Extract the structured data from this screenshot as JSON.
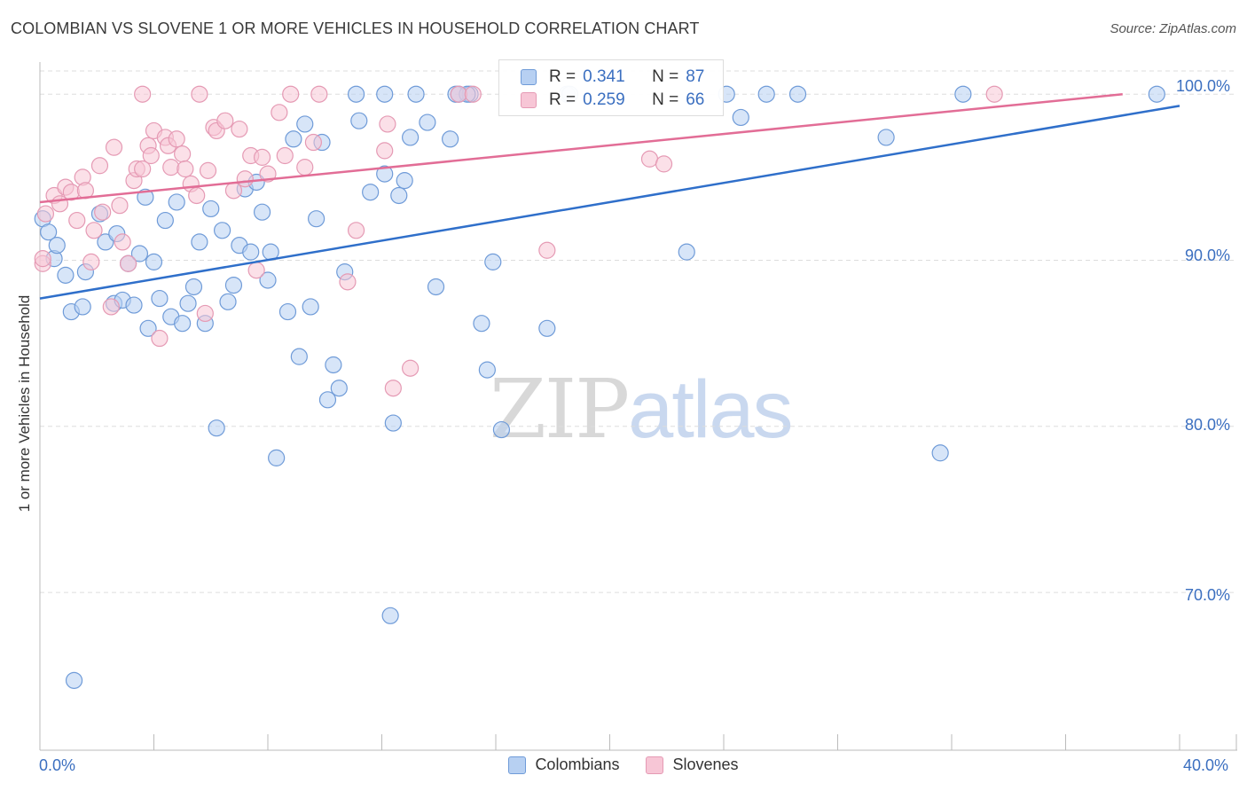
{
  "header": {
    "title": "COLOMBIAN VS SLOVENE 1 OR MORE VEHICLES IN HOUSEHOLD CORRELATION CHART",
    "source": "Source: ZipAtlas.com"
  },
  "watermark": {
    "zip": "ZIP",
    "atlas": "atlas"
  },
  "legend": {
    "r_label": "R =",
    "n_label": "N =",
    "colombians": {
      "r": "0.341",
      "n": "87",
      "name": "Colombians"
    },
    "slovenes": {
      "r": "0.259",
      "n": "66",
      "name": "Slovenes"
    }
  },
  "colors": {
    "colombians_fill": "#b7d0f2",
    "colombians_stroke": "#6f9bd8",
    "colombians_line": "#2f6fca",
    "slovenes_fill": "#f7c6d6",
    "slovenes_stroke": "#e59ab4",
    "slovenes_line": "#e26d96",
    "grid": "#dddddd",
    "axis_text": "#3b6fc0"
  },
  "chart_data": {
    "type": "scatter",
    "title": "COLOMBIAN VS SLOVENE 1 OR MORE VEHICLES IN HOUSEHOLD CORRELATION CHART",
    "xlabel": "",
    "ylabel": "1 or more Vehicles in Household",
    "xlim": [
      0,
      40
    ],
    "ylim": [
      60.5,
      101.4
    ],
    "x_tick_labels": [
      "0.0%",
      "40.0%"
    ],
    "y_ticks": [
      70,
      80,
      90,
      100
    ],
    "y_tick_labels": [
      "70.0%",
      "80.0%",
      "90.0%",
      "100.0%"
    ],
    "grid": true,
    "legend_position": "top-center",
    "series": [
      {
        "name": "Colombians",
        "r": 0.341,
        "n": 87,
        "trend": {
          "x": [
            0,
            40
          ],
          "y": [
            87.7,
            99.3
          ]
        },
        "points": [
          [
            0.1,
            92.5
          ],
          [
            0.3,
            91.7
          ],
          [
            0.5,
            90.1
          ],
          [
            0.6,
            90.9
          ],
          [
            0.9,
            89.1
          ],
          [
            1.1,
            86.9
          ],
          [
            1.2,
            64.7
          ],
          [
            1.5,
            87.2
          ],
          [
            1.6,
            89.3
          ],
          [
            2.1,
            92.8
          ],
          [
            2.3,
            91.1
          ],
          [
            2.7,
            91.6
          ],
          [
            2.6,
            87.4
          ],
          [
            2.9,
            87.6
          ],
          [
            3.1,
            89.8
          ],
          [
            3.3,
            87.3
          ],
          [
            3.5,
            90.4
          ],
          [
            3.7,
            93.8
          ],
          [
            3.8,
            85.9
          ],
          [
            4.0,
            89.9
          ],
          [
            4.2,
            87.7
          ],
          [
            4.4,
            92.4
          ],
          [
            4.6,
            86.6
          ],
          [
            4.8,
            93.5
          ],
          [
            5.0,
            86.2
          ],
          [
            5.2,
            87.4
          ],
          [
            5.4,
            88.4
          ],
          [
            5.6,
            91.1
          ],
          [
            5.8,
            86.2
          ],
          [
            6.0,
            93.1
          ],
          [
            6.2,
            79.9
          ],
          [
            6.4,
            91.8
          ],
          [
            6.6,
            87.5
          ],
          [
            6.8,
            88.5
          ],
          [
            7.0,
            90.9
          ],
          [
            7.2,
            94.3
          ],
          [
            7.4,
            90.5
          ],
          [
            7.6,
            94.7
          ],
          [
            7.8,
            92.9
          ],
          [
            8.0,
            88.8
          ],
          [
            8.1,
            90.5
          ],
          [
            8.3,
            78.1
          ],
          [
            8.7,
            86.9
          ],
          [
            8.9,
            97.3
          ],
          [
            9.1,
            84.2
          ],
          [
            9.3,
            98.2
          ],
          [
            9.5,
            87.2
          ],
          [
            9.7,
            92.5
          ],
          [
            9.9,
            97.1
          ],
          [
            10.1,
            81.6
          ],
          [
            10.3,
            83.7
          ],
          [
            10.5,
            82.3
          ],
          [
            10.7,
            89.3
          ],
          [
            11.1,
            100.0
          ],
          [
            11.2,
            98.4
          ],
          [
            11.6,
            94.1
          ],
          [
            12.1,
            95.2
          ],
          [
            12.3,
            68.6
          ],
          [
            12.4,
            80.2
          ],
          [
            12.6,
            93.9
          ],
          [
            12.8,
            94.8
          ],
          [
            13.0,
            97.4
          ],
          [
            13.2,
            100.0
          ],
          [
            13.6,
            98.3
          ],
          [
            13.9,
            88.4
          ],
          [
            14.4,
            97.3
          ],
          [
            14.6,
            100.0
          ],
          [
            15.1,
            100.0
          ],
          [
            15.5,
            86.2
          ],
          [
            15.7,
            83.4
          ],
          [
            15.9,
            89.9
          ],
          [
            16.2,
            79.8
          ],
          [
            17.8,
            85.9
          ],
          [
            18.5,
            100.0
          ],
          [
            18.6,
            100.0
          ],
          [
            22.7,
            90.5
          ],
          [
            24.1,
            100.0
          ],
          [
            24.6,
            98.6
          ],
          [
            25.5,
            100.0
          ],
          [
            26.6,
            100.0
          ],
          [
            29.7,
            97.4
          ],
          [
            31.6,
            78.4
          ],
          [
            32.4,
            100.0
          ],
          [
            39.2,
            100.0
          ],
          [
            12.1,
            100.0
          ],
          [
            15.0,
            100.0
          ],
          [
            14.7,
            100.0
          ]
        ]
      },
      {
        "name": "Slovenes",
        "r": 0.259,
        "n": 66,
        "trend": {
          "x": [
            0,
            38
          ],
          "y": [
            93.5,
            100.0
          ]
        },
        "points": [
          [
            0.1,
            89.8
          ],
          [
            0.2,
            92.8
          ],
          [
            0.5,
            93.9
          ],
          [
            0.7,
            93.4
          ],
          [
            0.9,
            94.4
          ],
          [
            1.1,
            94.1
          ],
          [
            1.3,
            92.4
          ],
          [
            1.5,
            95.0
          ],
          [
            1.6,
            94.2
          ],
          [
            1.8,
            89.9
          ],
          [
            1.9,
            91.8
          ],
          [
            2.1,
            95.7
          ],
          [
            2.2,
            92.9
          ],
          [
            2.5,
            87.2
          ],
          [
            2.6,
            96.8
          ],
          [
            2.8,
            93.3
          ],
          [
            2.9,
            91.1
          ],
          [
            3.1,
            89.8
          ],
          [
            3.3,
            94.8
          ],
          [
            3.4,
            95.5
          ],
          [
            3.6,
            95.5
          ],
          [
            3.8,
            96.9
          ],
          [
            3.9,
            96.3
          ],
          [
            4.0,
            97.8
          ],
          [
            4.2,
            85.3
          ],
          [
            4.4,
            97.4
          ],
          [
            4.5,
            96.9
          ],
          [
            4.6,
            95.6
          ],
          [
            4.8,
            97.3
          ],
          [
            5.0,
            96.4
          ],
          [
            5.1,
            95.5
          ],
          [
            5.3,
            94.6
          ],
          [
            5.5,
            93.9
          ],
          [
            5.6,
            100.0
          ],
          [
            5.8,
            86.8
          ],
          [
            5.9,
            95.4
          ],
          [
            6.1,
            98.0
          ],
          [
            6.2,
            97.8
          ],
          [
            6.5,
            98.4
          ],
          [
            6.8,
            94.2
          ],
          [
            7.0,
            97.9
          ],
          [
            7.2,
            94.9
          ],
          [
            7.4,
            96.3
          ],
          [
            7.6,
            89.4
          ],
          [
            7.8,
            96.2
          ],
          [
            8.0,
            95.2
          ],
          [
            8.4,
            98.9
          ],
          [
            8.6,
            96.3
          ],
          [
            8.8,
            100.0
          ],
          [
            9.3,
            95.6
          ],
          [
            9.6,
            97.1
          ],
          [
            9.8,
            100.0
          ],
          [
            10.8,
            88.7
          ],
          [
            11.1,
            91.8
          ],
          [
            12.1,
            96.6
          ],
          [
            12.2,
            98.2
          ],
          [
            12.4,
            82.3
          ],
          [
            13.0,
            83.5
          ],
          [
            14.7,
            100.0
          ],
          [
            15.2,
            100.0
          ],
          [
            17.8,
            90.6
          ],
          [
            21.4,
            96.1
          ],
          [
            21.9,
            95.8
          ],
          [
            33.5,
            100.0
          ],
          [
            0.1,
            90.1
          ],
          [
            3.6,
            100.0
          ]
        ]
      }
    ]
  }
}
